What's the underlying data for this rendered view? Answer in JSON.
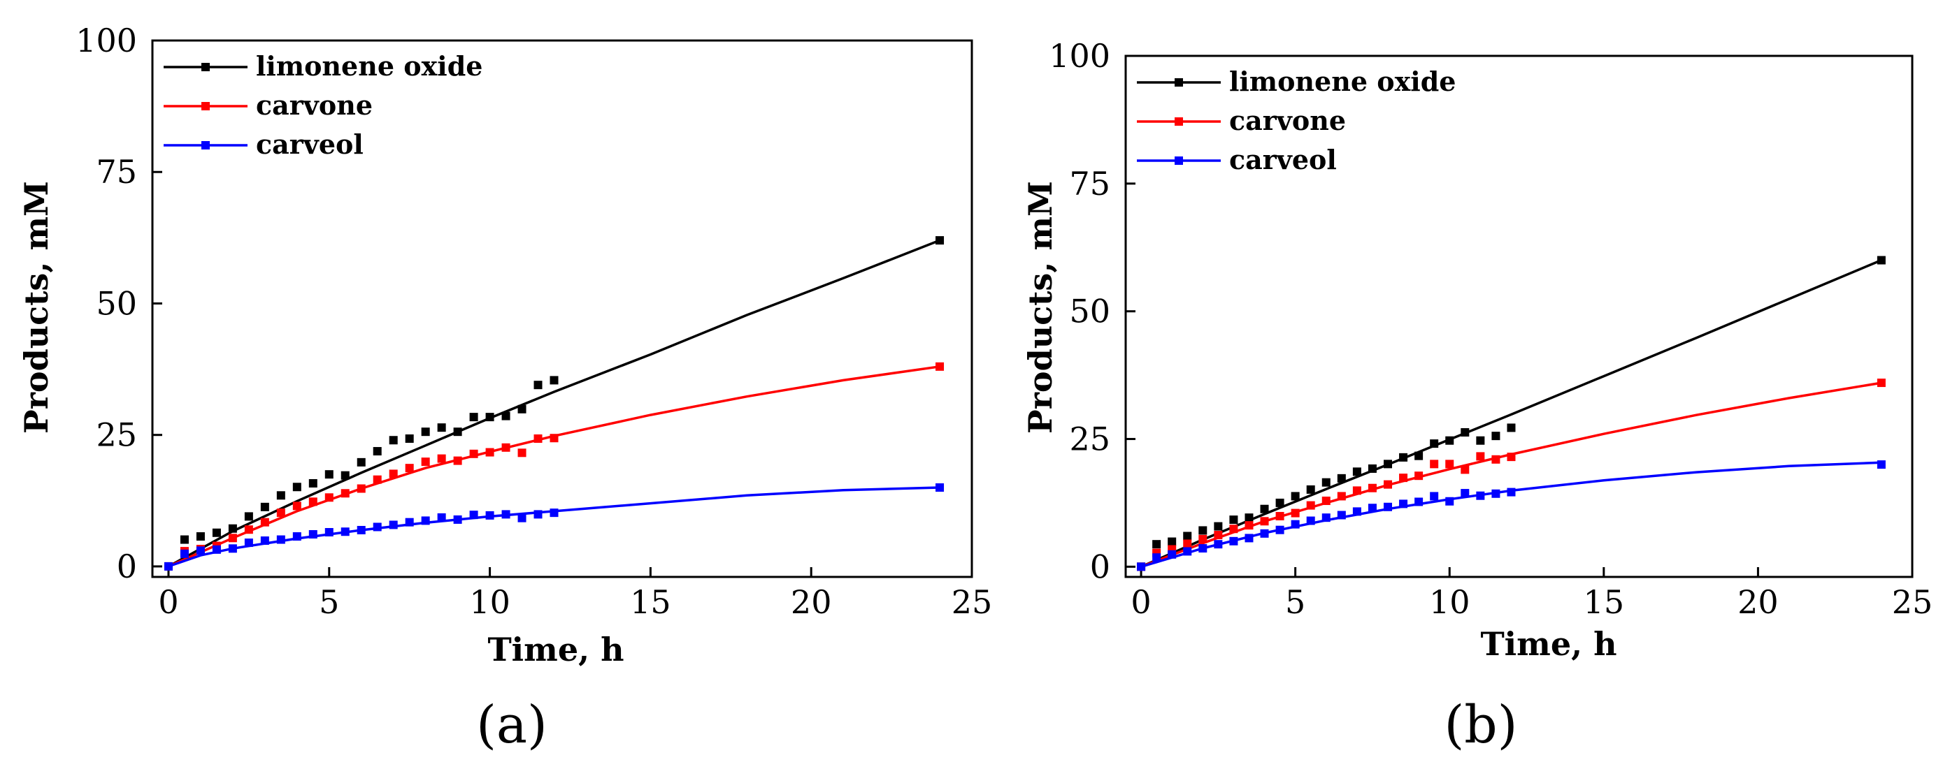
{
  "chart_data": [
    {
      "type": "line",
      "panel_label": "(a)",
      "xlabel": "Time, h",
      "ylabel": "Products, mM",
      "xlim": [
        -0.5,
        25
      ],
      "ylim": [
        -2,
        100
      ],
      "xticks": [
        0,
        5,
        10,
        15,
        20,
        25
      ],
      "yticks": [
        0,
        25,
        50,
        75,
        100
      ],
      "grid": false,
      "legend_position": "top-left",
      "series": [
        {
          "name": "limonene oxide",
          "color": "#000000",
          "points": [
            [
              0,
              0
            ],
            [
              0.5,
              5.1
            ],
            [
              1,
              5.7
            ],
            [
              1.5,
              6.4
            ],
            [
              2,
              7.2
            ],
            [
              2.5,
              9.5
            ],
            [
              3,
              11.3
            ],
            [
              3.5,
              13.5
            ],
            [
              4,
              15.1
            ],
            [
              4.5,
              15.8
            ],
            [
              5,
              17.5
            ],
            [
              5.5,
              17.3
            ],
            [
              6,
              19.8
            ],
            [
              6.5,
              21.9
            ],
            [
              7,
              24
            ],
            [
              7.5,
              24.3
            ],
            [
              8,
              25.6
            ],
            [
              8.5,
              26.4
            ],
            [
              9,
              25.6
            ],
            [
              9.5,
              28.4
            ],
            [
              10,
              28.4
            ],
            [
              10.5,
              28.6
            ],
            [
              11,
              29.9
            ],
            [
              11.5,
              34.5
            ],
            [
              12,
              35.4
            ],
            [
              24,
              62
            ]
          ],
          "fit": [
            [
              0,
              0
            ],
            [
              2,
              6.7
            ],
            [
              4,
              12.4
            ],
            [
              6,
              17.8
            ],
            [
              8,
              23
            ],
            [
              10,
              28.2
            ],
            [
              12,
              33.2
            ],
            [
              15,
              40.3
            ],
            [
              18,
              47.8
            ],
            [
              21,
              54.8
            ],
            [
              24,
              62
            ]
          ]
        },
        {
          "name": "carvone",
          "color": "#ff0000",
          "points": [
            [
              0,
              0
            ],
            [
              0.5,
              2.9
            ],
            [
              1,
              3.3
            ],
            [
              1.5,
              3.9
            ],
            [
              2,
              5.4
            ],
            [
              2.5,
              7
            ],
            [
              3,
              8.4
            ],
            [
              3.5,
              10.2
            ],
            [
              4,
              11.5
            ],
            [
              4.5,
              12.3
            ],
            [
              5,
              13.1
            ],
            [
              5.5,
              13.9
            ],
            [
              6,
              14.8
            ],
            [
              6.5,
              16.5
            ],
            [
              7,
              17.6
            ],
            [
              7.5,
              18.7
            ],
            [
              8,
              19.9
            ],
            [
              8.5,
              20.5
            ],
            [
              9,
              20.1
            ],
            [
              9.5,
              21.4
            ],
            [
              10,
              21.7
            ],
            [
              10.5,
              22.6
            ],
            [
              11,
              21.6
            ],
            [
              11.5,
              24.3
            ],
            [
              12,
              24.4
            ],
            [
              24,
              38
            ]
          ],
          "fit": [
            [
              0,
              0
            ],
            [
              2,
              5.4
            ],
            [
              4,
              10.5
            ],
            [
              6,
              14.8
            ],
            [
              8,
              18.7
            ],
            [
              10,
              21.8
            ],
            [
              12,
              24.8
            ],
            [
              15,
              28.8
            ],
            [
              18,
              32.3
            ],
            [
              21,
              35.4
            ],
            [
              24,
              38
            ]
          ]
        },
        {
          "name": "carveol",
          "color": "#0000ff",
          "points": [
            [
              0,
              0
            ],
            [
              0.5,
              2.4
            ],
            [
              1,
              3
            ],
            [
              1.5,
              3.2
            ],
            [
              2,
              3.4
            ],
            [
              2.5,
              4.5
            ],
            [
              3,
              4.9
            ],
            [
              3.5,
              5.1
            ],
            [
              4,
              5.7
            ],
            [
              4.5,
              6.1
            ],
            [
              5,
              6.5
            ],
            [
              5.5,
              6.6
            ],
            [
              6,
              6.9
            ],
            [
              6.5,
              7.5
            ],
            [
              7,
              7.9
            ],
            [
              7.5,
              8.4
            ],
            [
              8,
              8.7
            ],
            [
              8.5,
              9.3
            ],
            [
              9,
              8.9
            ],
            [
              9.5,
              9.8
            ],
            [
              10,
              9.7
            ],
            [
              10.5,
              9.9
            ],
            [
              11,
              9.2
            ],
            [
              11.5,
              9.9
            ],
            [
              12,
              10.2
            ],
            [
              24,
              15
            ]
          ],
          "fit": [
            [
              0,
              0
            ],
            [
              1,
              2.1
            ],
            [
              2,
              3.4
            ],
            [
              4,
              5.3
            ],
            [
              6,
              6.9
            ],
            [
              8,
              8.3
            ],
            [
              10,
              9.5
            ],
            [
              12,
              10.5
            ],
            [
              15,
              12
            ],
            [
              18,
              13.5
            ],
            [
              21,
              14.5
            ],
            [
              24,
              15
            ]
          ]
        }
      ]
    },
    {
      "type": "line",
      "panel_label": "(b)",
      "xlabel": "Time, h",
      "ylabel": "Products, mM",
      "xlim": [
        -0.5,
        25
      ],
      "ylim": [
        -2,
        100
      ],
      "xticks": [
        0,
        5,
        10,
        15,
        20,
        25
      ],
      "yticks": [
        0,
        25,
        50,
        75,
        100
      ],
      "grid": false,
      "legend_position": "top-left",
      "series": [
        {
          "name": "limonene oxide",
          "color": "#000000",
          "points": [
            [
              0,
              0
            ],
            [
              0.5,
              4.4
            ],
            [
              1,
              4.9
            ],
            [
              1.5,
              6
            ],
            [
              2,
              7.1
            ],
            [
              2.5,
              7.9
            ],
            [
              3,
              9.2
            ],
            [
              3.5,
              9.6
            ],
            [
              4,
              11.3
            ],
            [
              4.5,
              12.5
            ],
            [
              5,
              13.8
            ],
            [
              5.5,
              15.1
            ],
            [
              6,
              16.5
            ],
            [
              6.5,
              17.3
            ],
            [
              7,
              18.6
            ],
            [
              7.5,
              19.2
            ],
            [
              8,
              20.1
            ],
            [
              8.5,
              21.4
            ],
            [
              9,
              21.7
            ],
            [
              9.5,
              24.1
            ],
            [
              10,
              24.7
            ],
            [
              10.5,
              26.3
            ],
            [
              11,
              24.7
            ],
            [
              11.5,
              25.6
            ],
            [
              12,
              27.2
            ],
            [
              24,
              60
            ]
          ],
          "fit": [
            [
              0,
              0
            ],
            [
              2,
              5.3
            ],
            [
              4,
              10.3
            ],
            [
              6,
              15.2
            ],
            [
              8,
              20
            ],
            [
              10,
              24.9
            ],
            [
              12,
              29.8
            ],
            [
              15,
              37.3
            ],
            [
              18,
              44.8
            ],
            [
              21,
              52.4
            ],
            [
              24,
              60
            ]
          ]
        },
        {
          "name": "carvone",
          "color": "#ff0000",
          "points": [
            [
              0,
              0
            ],
            [
              0.5,
              2.7
            ],
            [
              1,
              3.4
            ],
            [
              1.5,
              4.5
            ],
            [
              2,
              5.4
            ],
            [
              2.5,
              6.2
            ],
            [
              3,
              7.4
            ],
            [
              3.5,
              8.1
            ],
            [
              4,
              8.9
            ],
            [
              4.5,
              9.9
            ],
            [
              5,
              10.5
            ],
            [
              5.5,
              12
            ],
            [
              6,
              12.9
            ],
            [
              6.5,
              13.8
            ],
            [
              7,
              14.9
            ],
            [
              7.5,
              15.4
            ],
            [
              8,
              16.1
            ],
            [
              8.5,
              17.4
            ],
            [
              9,
              17.8
            ],
            [
              9.5,
              20.1
            ],
            [
              10,
              20.1
            ],
            [
              10.5,
              19
            ],
            [
              11,
              21.6
            ],
            [
              11.5,
              21
            ],
            [
              12,
              21.5
            ],
            [
              24,
              36
            ]
          ],
          "fit": [
            [
              0,
              0
            ],
            [
              2,
              4.6
            ],
            [
              4,
              8.9
            ],
            [
              6,
              12.5
            ],
            [
              8,
              16
            ],
            [
              10,
              19.1
            ],
            [
              12,
              22
            ],
            [
              15,
              26
            ],
            [
              18,
              29.7
            ],
            [
              21,
              33
            ],
            [
              24,
              36
            ]
          ]
        },
        {
          "name": "carveol",
          "color": "#0000ff",
          "points": [
            [
              0,
              0
            ],
            [
              0.5,
              1.8
            ],
            [
              1,
              2.4
            ],
            [
              1.5,
              3
            ],
            [
              2,
              3.6
            ],
            [
              2.5,
              4.4
            ],
            [
              3,
              5
            ],
            [
              3.5,
              5.6
            ],
            [
              4,
              6.5
            ],
            [
              4.5,
              7.2
            ],
            [
              5,
              8.3
            ],
            [
              5.5,
              9
            ],
            [
              6,
              9.6
            ],
            [
              6.5,
              10.1
            ],
            [
              7,
              10.8
            ],
            [
              7.5,
              11.5
            ],
            [
              8,
              11.7
            ],
            [
              8.5,
              12.3
            ],
            [
              9,
              12.7
            ],
            [
              9.5,
              13.8
            ],
            [
              10,
              12.8
            ],
            [
              10.5,
              14.4
            ],
            [
              11,
              13.9
            ],
            [
              11.5,
              14.3
            ],
            [
              12,
              14.6
            ],
            [
              24,
              20
            ]
          ],
          "fit": [
            [
              0,
              0
            ],
            [
              2,
              3.6
            ],
            [
              4,
              6.6
            ],
            [
              6,
              9.1
            ],
            [
              8,
              11.3
            ],
            [
              10,
              13.2
            ],
            [
              12,
              14.9
            ],
            [
              15,
              16.9
            ],
            [
              18,
              18.5
            ],
            [
              21,
              19.7
            ],
            [
              24,
              20.4
            ]
          ]
        }
      ]
    }
  ]
}
